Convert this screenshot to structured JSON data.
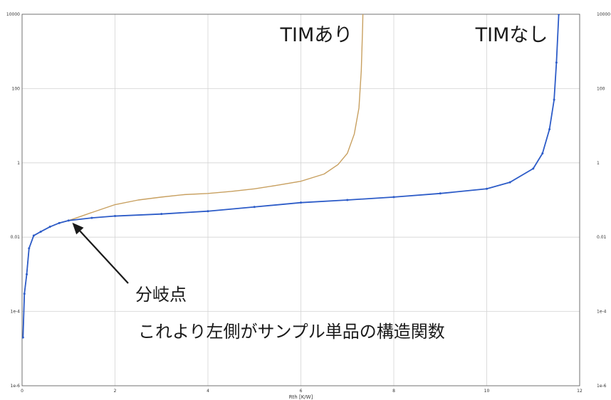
{
  "chart_data": {
    "type": "line",
    "title": "",
    "xlabel": "Rth [K/W]",
    "ylabel": "",
    "xlim": [
      0,
      12
    ],
    "ylim": [
      1e-06,
      10000
    ],
    "yscale": "log",
    "grid": true,
    "x_ticks": [
      0,
      2,
      4,
      6,
      8,
      10,
      12
    ],
    "x_tick_labels": [
      "0",
      "2",
      "4",
      "6",
      "8",
      "10",
      "12"
    ],
    "y_ticks": [
      1e-06,
      0.0001,
      0.01,
      1,
      100,
      10000
    ],
    "y_tick_labels": [
      "1e-6",
      "1e-4",
      "0.01",
      "1",
      "100",
      "10000"
    ],
    "series": [
      {
        "name": "TIMあり",
        "color": "#c8a060",
        "markers": false,
        "points": [
          [
            0.02,
            2e-05
          ],
          [
            0.05,
            0.0003
          ],
          [
            0.1,
            0.001
          ],
          [
            0.15,
            0.005
          ],
          [
            0.25,
            0.011
          ],
          [
            0.4,
            0.014
          ],
          [
            0.6,
            0.019
          ],
          [
            0.8,
            0.024
          ],
          [
            1.0,
            0.028
          ],
          [
            1.2,
            0.034
          ],
          [
            1.5,
            0.046
          ],
          [
            2.0,
            0.075
          ],
          [
            2.5,
            0.1
          ],
          [
            3.0,
            0.12
          ],
          [
            3.5,
            0.14
          ],
          [
            4.0,
            0.15
          ],
          [
            4.5,
            0.17
          ],
          [
            5.0,
            0.2
          ],
          [
            5.5,
            0.25
          ],
          [
            6.0,
            0.32
          ],
          [
            6.5,
            0.5
          ],
          [
            6.8,
            0.9
          ],
          [
            7.0,
            1.8
          ],
          [
            7.15,
            6
          ],
          [
            7.25,
            30
          ],
          [
            7.3,
            300
          ],
          [
            7.33,
            5000
          ],
          [
            7.35,
            100000
          ]
        ]
      },
      {
        "name": "TIMなし",
        "color": "#2d5cc8",
        "markers": true,
        "points": [
          [
            0.02,
            2e-05
          ],
          [
            0.05,
            0.0003
          ],
          [
            0.1,
            0.001
          ],
          [
            0.15,
            0.005
          ],
          [
            0.25,
            0.011
          ],
          [
            0.4,
            0.014
          ],
          [
            0.6,
            0.019
          ],
          [
            0.8,
            0.024
          ],
          [
            1.0,
            0.028
          ],
          [
            1.5,
            0.033
          ],
          [
            2.0,
            0.037
          ],
          [
            3.0,
            0.042
          ],
          [
            4.0,
            0.05
          ],
          [
            5.0,
            0.065
          ],
          [
            6.0,
            0.085
          ],
          [
            7.0,
            0.1
          ],
          [
            8.0,
            0.12
          ],
          [
            9.0,
            0.15
          ],
          [
            10.0,
            0.2
          ],
          [
            10.5,
            0.3
          ],
          [
            11.0,
            0.7
          ],
          [
            11.2,
            1.8
          ],
          [
            11.35,
            8
          ],
          [
            11.45,
            50
          ],
          [
            11.5,
            500
          ],
          [
            11.55,
            10000
          ],
          [
            11.58,
            100000
          ]
        ]
      }
    ],
    "annotations": [
      {
        "text": "分岐点",
        "at": [
          1.05,
          0.028
        ],
        "arrow": true
      },
      {
        "text": "これより左側がサンプル単品の構造関数"
      }
    ]
  }
}
